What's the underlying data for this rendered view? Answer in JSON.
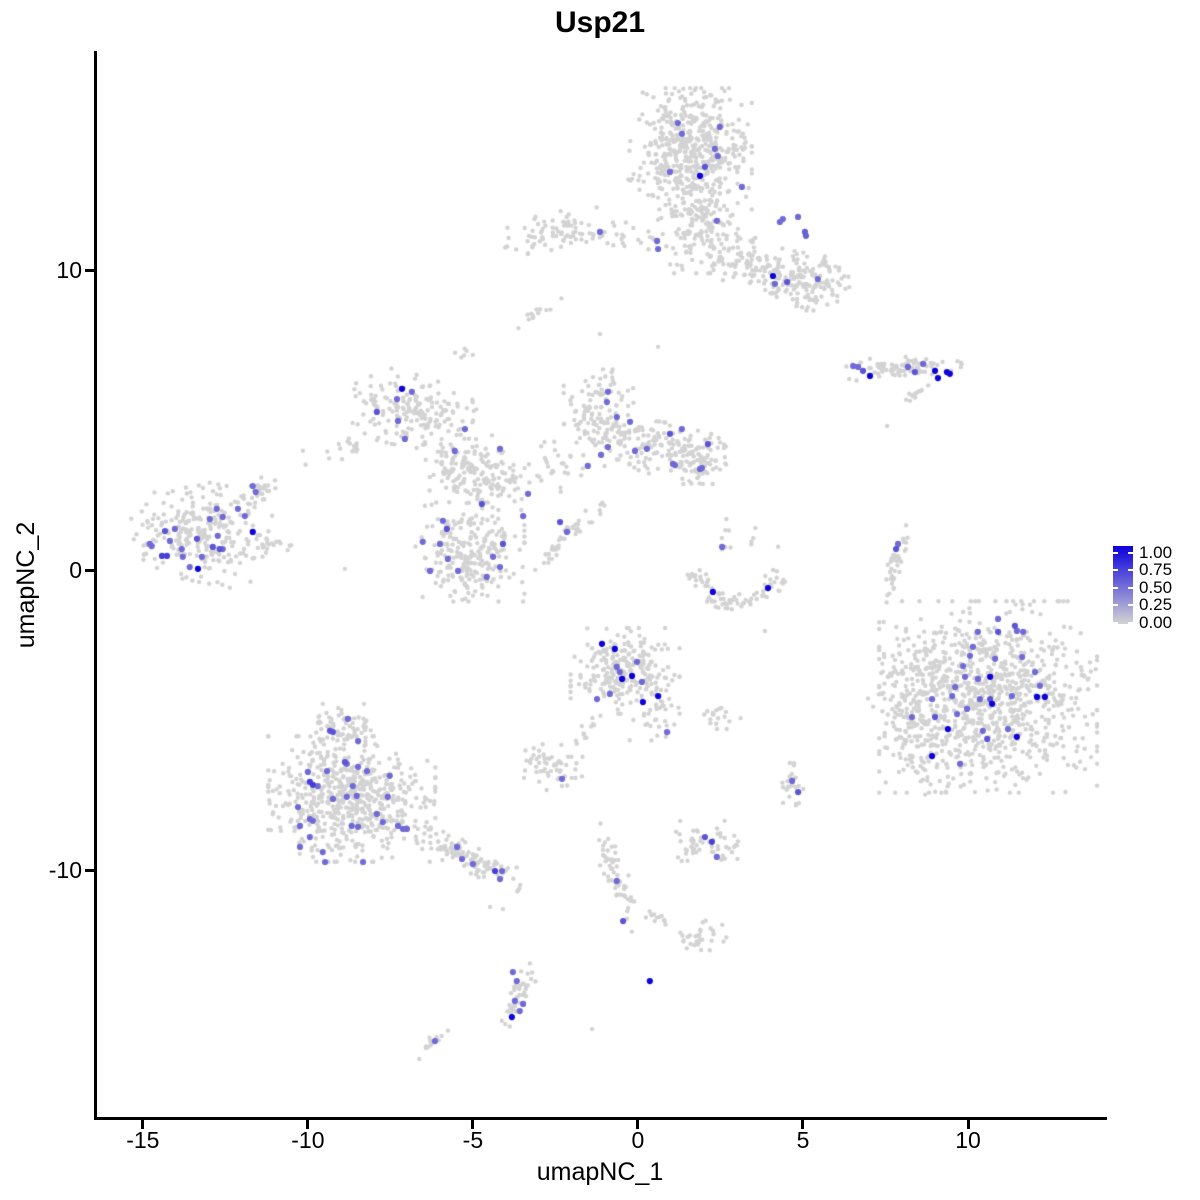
{
  "chart_data": {
    "type": "scatter",
    "title": "Usp21",
    "xlabel": "umapNC_1",
    "ylabel": "umapNC_2",
    "xlim": [
      -16.45,
      14.12
    ],
    "ylim": [
      -18.2,
      17.33
    ],
    "x_ticks": [
      -15,
      -10,
      -5,
      0,
      5,
      10
    ],
    "y_ticks": [
      10,
      0,
      -10
    ],
    "grid": false,
    "point_color_low": "#d3d3d3",
    "point_color_high": "#0b00dc",
    "legend": {
      "position": "right",
      "labels": [
        "1.00",
        "0.75",
        "0.50",
        "0.25",
        "0.00"
      ],
      "color_high": "#0b00dc",
      "color_low": "#d3d3d3"
    },
    "background_clusters": [
      {
        "x": 1.58,
        "y": 14.07,
        "sx": 0.85,
        "sy": 0.92,
        "rot": 0,
        "n": 500
      },
      {
        "x": 1.82,
        "y": 11.57,
        "sx": 0.55,
        "sy": 0.75,
        "rot": 0,
        "n": 150
      },
      {
        "x": 3.7,
        "y": 10.07,
        "sx": 0.9,
        "sy": 0.45,
        "rot": -20,
        "n": 130
      },
      {
        "x": 5.27,
        "y": 9.67,
        "sx": 0.55,
        "sy": 0.45,
        "rot": 0,
        "n": 110
      },
      {
        "x": -2.21,
        "y": 11.3,
        "sx": 0.85,
        "sy": 0.32,
        "rot": 8,
        "n": 85
      },
      {
        "x": 0.06,
        "y": 11.07,
        "sx": 0.5,
        "sy": 0.28,
        "rot": 0,
        "n": 16
      },
      {
        "x": -3.0,
        "y": 8.6,
        "sx": 0.38,
        "sy": 0.1,
        "rot": 37,
        "n": 13
      },
      {
        "x": -5.21,
        "y": 7.3,
        "sx": 0.15,
        "sy": 0.1,
        "rot": 0,
        "n": 6
      },
      {
        "x": 7.94,
        "y": 6.77,
        "sx": 0.85,
        "sy": 0.16,
        "rot": 3,
        "n": 85
      },
      {
        "x": 8.45,
        "y": 5.87,
        "sx": 0.3,
        "sy": 0.08,
        "rot": 40,
        "n": 13
      },
      {
        "x": -6.85,
        "y": 5.33,
        "sx": 0.85,
        "sy": 0.55,
        "rot": -15,
        "n": 175
      },
      {
        "x": -5.33,
        "y": 3.67,
        "sx": 0.5,
        "sy": 0.45,
        "rot": 0,
        "n": 65
      },
      {
        "x": -4.73,
        "y": 3.13,
        "sx": 0.55,
        "sy": 0.5,
        "rot": 0,
        "n": 115
      },
      {
        "x": -8.36,
        "y": 4.3,
        "sx": 0.85,
        "sy": 0.18,
        "rot": 22,
        "n": 26
      },
      {
        "x": -5.09,
        "y": 0.63,
        "sx": 0.75,
        "sy": 0.75,
        "rot": 0,
        "n": 240
      },
      {
        "x": -2.15,
        "y": 1.17,
        "sx": 0.7,
        "sy": 0.12,
        "rot": 48,
        "n": 45
      },
      {
        "x": -1.15,
        "y": 5.07,
        "sx": 0.5,
        "sy": 0.75,
        "rot": 0,
        "n": 135
      },
      {
        "x": 0.42,
        "y": 4.13,
        "sx": 0.65,
        "sy": 0.4,
        "rot": -10,
        "n": 110
      },
      {
        "x": 1.88,
        "y": 3.8,
        "sx": 0.4,
        "sy": 0.45,
        "rot": 0,
        "n": 90
      },
      {
        "x": -2.82,
        "y": 3.4,
        "sx": 0.5,
        "sy": 0.45,
        "rot": 0,
        "n": 28
      },
      {
        "x": -13.33,
        "y": 1.33,
        "sx": 0.95,
        "sy": 0.75,
        "rot": -12,
        "n": 260
      },
      {
        "x": -11.58,
        "y": 2.6,
        "sx": 0.45,
        "sy": 0.15,
        "rot": 42,
        "n": 30
      },
      {
        "x": -11.09,
        "y": 0.87,
        "sx": 0.35,
        "sy": 0.12,
        "rot": 0,
        "n": 22
      },
      {
        "kind": "arc",
        "x": 2.94,
        "y": 0.13,
        "rx": 1.25,
        "ry": 1.2,
        "a0": 185,
        "a1": 355,
        "th": 0.13,
        "n": 80
      },
      {
        "x": 3.09,
        "y": 1.07,
        "sx": 0.8,
        "sy": 0.3,
        "rot": 0,
        "n": 12
      },
      {
        "x": 7.85,
        "y": 0.23,
        "sx": 0.6,
        "sy": 0.12,
        "rot": 74,
        "n": 40
      },
      {
        "x": 10.61,
        "y": -4.2,
        "sx": 1.5,
        "sy": 1.45,
        "rot": 0,
        "n": 950
      },
      {
        "x": 8.18,
        "y": -4.03,
        "sx": 0.55,
        "sy": 1.0,
        "rot": 0,
        "n": 120
      },
      {
        "x": 8.6,
        "y": -6.3,
        "sx": 0.5,
        "sy": 0.6,
        "rot": 0,
        "n": 45
      },
      {
        "x": -0.39,
        "y": -3.33,
        "sx": 0.75,
        "sy": 0.65,
        "rot": 0,
        "n": 230
      },
      {
        "x": 0.52,
        "y": -4.77,
        "sx": 0.35,
        "sy": 0.4,
        "rot": 0,
        "n": 35
      },
      {
        "x": 2.45,
        "y": -4.83,
        "sx": 0.3,
        "sy": 0.2,
        "rot": 0,
        "n": 18
      },
      {
        "x": -2.67,
        "y": -6.53,
        "sx": 0.45,
        "sy": 0.35,
        "rot": 0,
        "n": 55
      },
      {
        "x": -1.61,
        "y": -5.43,
        "sx": 0.55,
        "sy": 0.1,
        "rot": 56,
        "n": 15
      },
      {
        "x": 4.64,
        "y": -7.17,
        "sx": 0.18,
        "sy": 0.35,
        "rot": 0,
        "n": 25
      },
      {
        "x": -9.0,
        "y": -5.2,
        "sx": 0.5,
        "sy": 0.35,
        "rot": 0,
        "n": 65
      },
      {
        "x": -8.67,
        "y": -7.6,
        "sx": 1.15,
        "sy": 0.95,
        "rot": 0,
        "n": 600
      },
      {
        "x": -5.15,
        "y": -9.53,
        "sx": 0.85,
        "sy": 0.22,
        "rot": -29,
        "n": 120
      },
      {
        "x": -0.64,
        "y": -10.2,
        "sx": 0.85,
        "sy": 0.16,
        "rot": -71,
        "n": 55
      },
      {
        "x": 0.55,
        "y": -11.5,
        "sx": 0.4,
        "sy": 0.1,
        "rot": -25,
        "n": 12
      },
      {
        "x": 2.18,
        "y": -9.1,
        "sx": 0.55,
        "sy": 0.35,
        "rot": 0,
        "n": 55
      },
      {
        "x": 1.82,
        "y": -12.2,
        "sx": 0.38,
        "sy": 0.25,
        "rot": 25,
        "n": 30
      },
      {
        "x": -3.58,
        "y": -14.1,
        "sx": 0.55,
        "sy": 0.14,
        "rot": 67,
        "n": 38
      },
      {
        "x": -6.24,
        "y": -15.7,
        "sx": 0.3,
        "sy": 0.1,
        "rot": 40,
        "n": 12
      }
    ],
    "stray_points": [
      [
        -1.15,
        7.9
      ],
      [
        0.61,
        7.47
      ],
      [
        3.85,
        -2.0
      ],
      [
        7.55,
        4.83
      ],
      [
        -4.48,
        -11.2
      ],
      [
        -4.09,
        -11.27
      ],
      [
        -1.39,
        -15.27
      ],
      [
        -8.88,
        0.07
      ]
    ],
    "expressed_points": [
      [
        1.21,
        14.93,
        0.5
      ],
      [
        2.48,
        14.8,
        0.5
      ],
      [
        1.33,
        14.57,
        0.5
      ],
      [
        2.33,
        14.07,
        0.5
      ],
      [
        2.42,
        13.83,
        0.5
      ],
      [
        2.03,
        13.47,
        0.6
      ],
      [
        1.88,
        13.17,
        1
      ],
      [
        0.97,
        13.3,
        0.5
      ],
      [
        3.15,
        12.8,
        0.5
      ],
      [
        2.39,
        11.67,
        0.5
      ],
      [
        0.58,
        11.0,
        0.5
      ],
      [
        -1.15,
        11.3,
        0.5
      ],
      [
        0.61,
        10.73,
        0.5
      ],
      [
        4.3,
        11.63,
        0.5
      ],
      [
        4.39,
        11.73,
        0.5
      ],
      [
        4.85,
        11.8,
        0.5
      ],
      [
        5.06,
        11.3,
        0.55
      ],
      [
        5.09,
        11.17,
        0.55
      ],
      [
        4.09,
        9.83,
        1
      ],
      [
        4.15,
        9.57,
        0.5
      ],
      [
        4.52,
        9.63,
        0.6
      ],
      [
        5.45,
        9.73,
        0.5
      ],
      [
        -7.15,
        6.07,
        1
      ],
      [
        -6.85,
        5.97,
        0.5
      ],
      [
        -7.3,
        5.73,
        0.5
      ],
      [
        -7.91,
        5.3,
        0.6
      ],
      [
        -7.27,
        5.0,
        0.5
      ],
      [
        -7.06,
        4.4,
        0.5
      ],
      [
        -5.24,
        4.73,
        0.5
      ],
      [
        -5.55,
        4.0,
        0.5
      ],
      [
        -4.18,
        4.07,
        0.5
      ],
      [
        -3.33,
        2.57,
        0.5
      ],
      [
        -4.73,
        2.23,
        0.6
      ],
      [
        -3.48,
        1.83,
        0.5
      ],
      [
        -2.36,
        1.63,
        0.6
      ],
      [
        -2.15,
        1.3,
        0.5
      ],
      [
        -5.91,
        1.67,
        0.5
      ],
      [
        -5.79,
        1.4,
        0.6
      ],
      [
        -6.52,
        0.97,
        0.5
      ],
      [
        -6.0,
        0.9,
        0.5
      ],
      [
        -4.09,
        0.9,
        0.6
      ],
      [
        -4.39,
        0.47,
        0.5
      ],
      [
        -5.76,
        0.4,
        0.5
      ],
      [
        -6.3,
        0.0,
        0.5
      ],
      [
        -5.45,
        0.0,
        0.5
      ],
      [
        -4.18,
        0.13,
        0.5
      ],
      [
        -4.58,
        -0.2,
        0.5
      ],
      [
        -0.91,
        5.97,
        0.5
      ],
      [
        -0.94,
        5.63,
        0.5
      ],
      [
        -0.64,
        5.13,
        0.5
      ],
      [
        -0.24,
        4.97,
        0.5
      ],
      [
        -0.91,
        4.13,
        0.5
      ],
      [
        -1.52,
        3.5,
        0.5
      ],
      [
        -0.09,
        4.0,
        0.5
      ],
      [
        0.27,
        4.07,
        0.5
      ],
      [
        0.97,
        4.57,
        0.6
      ],
      [
        1.33,
        4.73,
        0.5
      ],
      [
        1.06,
        3.57,
        0.5
      ],
      [
        2.12,
        4.23,
        0.6
      ],
      [
        1.88,
        3.4,
        0.5
      ],
      [
        -1.12,
        3.87,
        0.5
      ],
      [
        1.12,
        3.53,
        0.5
      ],
      [
        1.94,
        3.43,
        0.5
      ],
      [
        -11.67,
        2.83,
        0.5
      ],
      [
        -11.58,
        2.63,
        0.5
      ],
      [
        -12.76,
        2.07,
        0.5
      ],
      [
        -12.12,
        2.07,
        0.5
      ],
      [
        -12.97,
        1.73,
        0.5
      ],
      [
        -12.58,
        1.8,
        0.5
      ],
      [
        -11.91,
        1.83,
        0.5
      ],
      [
        -14.33,
        1.33,
        0.6
      ],
      [
        -14.03,
        1.4,
        0.5
      ],
      [
        -11.67,
        1.3,
        1
      ],
      [
        -14.73,
        0.83,
        0.5
      ],
      [
        -14.18,
        1.0,
        0.5
      ],
      [
        -13.36,
        1.07,
        0.6
      ],
      [
        -12.73,
        1.17,
        0.5
      ],
      [
        -13.82,
        0.73,
        0.5
      ],
      [
        -12.88,
        0.8,
        0.6
      ],
      [
        -12.67,
        0.73,
        0.6
      ],
      [
        -14.42,
        0.5,
        0.7
      ],
      [
        -14.27,
        0.5,
        0.7
      ],
      [
        -13.79,
        0.47,
        0.5
      ],
      [
        -13.21,
        0.47,
        0.5
      ],
      [
        -12.58,
        0.73,
        0.5
      ],
      [
        -13.58,
        0.13,
        0.5
      ],
      [
        -13.33,
        0.07,
        1
      ],
      [
        -14.79,
        0.9,
        0.5
      ],
      [
        10.91,
        -1.6,
        0.5
      ],
      [
        11.42,
        -1.83,
        0.6
      ],
      [
        11.48,
        -2.0,
        0.5
      ],
      [
        10.3,
        -2.03,
        0.5
      ],
      [
        11.67,
        -2.03,
        0.5
      ],
      [
        10.91,
        -2.03,
        0.6
      ],
      [
        10.15,
        -2.53,
        0.5
      ],
      [
        10.06,
        -2.83,
        0.5
      ],
      [
        10.82,
        -2.93,
        0.5
      ],
      [
        11.64,
        -2.87,
        0.5
      ],
      [
        9.85,
        -3.17,
        0.5
      ],
      [
        12.03,
        -3.37,
        0.5
      ],
      [
        10.67,
        -3.53,
        1
      ],
      [
        10.3,
        -3.6,
        0.5
      ],
      [
        9.91,
        -3.53,
        0.5
      ],
      [
        9.61,
        -3.87,
        0.5
      ],
      [
        12.18,
        -3.83,
        0.5
      ],
      [
        9.52,
        -4.17,
        0.5
      ],
      [
        10.36,
        -4.27,
        0.5
      ],
      [
        10.67,
        -4.27,
        0.6
      ],
      [
        10.73,
        -4.43,
        1
      ],
      [
        11.33,
        -4.17,
        0.5
      ],
      [
        12.09,
        -4.2,
        1
      ],
      [
        12.33,
        -4.2,
        1
      ],
      [
        8.91,
        -4.27,
        0.5
      ],
      [
        9.97,
        -4.6,
        0.5
      ],
      [
        9.67,
        -4.77,
        0.5
      ],
      [
        8.3,
        -4.87,
        0.5
      ],
      [
        9.0,
        -4.87,
        0.6
      ],
      [
        9.39,
        -5.27,
        1
      ],
      [
        10.45,
        -5.33,
        0.5
      ],
      [
        11.21,
        -5.27,
        0.5
      ],
      [
        11.48,
        -5.53,
        1
      ],
      [
        10.58,
        -5.6,
        0.6
      ],
      [
        8.91,
        -6.17,
        1
      ],
      [
        9.76,
        -6.43,
        0.5
      ],
      [
        -8.79,
        -4.93,
        0.5
      ],
      [
        -9.33,
        -5.33,
        0.6
      ],
      [
        -9.24,
        -5.37,
        0.6
      ],
      [
        -8.48,
        -5.67,
        0.5
      ],
      [
        -9.42,
        -6.67,
        0.5
      ],
      [
        -8.88,
        -6.37,
        0.6
      ],
      [
        -8.82,
        -6.43,
        0.5
      ],
      [
        -8.48,
        -6.53,
        0.5
      ],
      [
        -8.21,
        -6.67,
        0.5
      ],
      [
        -7.52,
        -6.83,
        0.5
      ],
      [
        -10.0,
        -6.7,
        0.5
      ],
      [
        -9.94,
        -7.03,
        0.7
      ],
      [
        -9.85,
        -7.13,
        0.7
      ],
      [
        -9.7,
        -7.17,
        0.5
      ],
      [
        -8.64,
        -7.17,
        0.5
      ],
      [
        -9.24,
        -7.6,
        0.5
      ],
      [
        -8.82,
        -7.53,
        0.5
      ],
      [
        -8.52,
        -7.5,
        0.5
      ],
      [
        -7.58,
        -7.53,
        0.5
      ],
      [
        -10.3,
        -7.87,
        0.5
      ],
      [
        -9.94,
        -8.27,
        0.5
      ],
      [
        -9.85,
        -8.33,
        0.5
      ],
      [
        -10.24,
        -8.5,
        0.5
      ],
      [
        -7.91,
        -8.1,
        0.5
      ],
      [
        -7.73,
        -8.37,
        0.5
      ],
      [
        -8.67,
        -8.5,
        0.5
      ],
      [
        -8.48,
        -8.53,
        0.5
      ],
      [
        -7.27,
        -8.5,
        0.5
      ],
      [
        -7.0,
        -8.6,
        0.5
      ],
      [
        -9.94,
        -8.87,
        0.5
      ],
      [
        -10.24,
        -9.2,
        0.5
      ],
      [
        -9.55,
        -9.37,
        0.5
      ],
      [
        -9.48,
        -9.7,
        0.5
      ],
      [
        -8.33,
        -9.7,
        0.5
      ],
      [
        -7.12,
        -8.6,
        0.5
      ],
      [
        -5.48,
        -9.2,
        0.5
      ],
      [
        -5.33,
        -9.6,
        0.5
      ],
      [
        -5.0,
        -9.77,
        0.5
      ],
      [
        -4.33,
        -10.0,
        0.7
      ],
      [
        -4.12,
        -10.0,
        0.5
      ],
      [
        -4.18,
        -10.27,
        0.5
      ],
      [
        -1.09,
        -2.43,
        1
      ],
      [
        -0.7,
        -2.6,
        1
      ],
      [
        -0.03,
        -3.03,
        0.5
      ],
      [
        -0.64,
        -3.2,
        0.5
      ],
      [
        -0.55,
        -3.37,
        0.5
      ],
      [
        -0.18,
        -3.5,
        1
      ],
      [
        -0.48,
        -3.6,
        1
      ],
      [
        0.12,
        -3.7,
        0.5
      ],
      [
        -0.85,
        -4.1,
        0.5
      ],
      [
        0.61,
        -4.17,
        1
      ],
      [
        -1.24,
        -4.27,
        0.5
      ],
      [
        0.15,
        -4.37,
        1
      ],
      [
        0.88,
        -5.37,
        0.5
      ],
      [
        -2.3,
        -6.93,
        0.5
      ],
      [
        4.67,
        -7.0,
        0.5
      ],
      [
        4.85,
        -7.37,
        0.6
      ],
      [
        -0.64,
        -10.33,
        0.5
      ],
      [
        -0.45,
        -11.67,
        0.6
      ],
      [
        2.03,
        -8.87,
        0.6
      ],
      [
        2.24,
        -9.03,
        0.7
      ],
      [
        2.39,
        -9.53,
        0.5
      ],
      [
        -3.79,
        -13.37,
        0.5
      ],
      [
        -3.67,
        -13.67,
        0.5
      ],
      [
        -3.73,
        -14.33,
        0.5
      ],
      [
        -3.48,
        -14.43,
        0.5
      ],
      [
        -3.58,
        -14.67,
        0.5
      ],
      [
        -3.82,
        -14.87,
        1
      ],
      [
        0.36,
        -13.67,
        1
      ],
      [
        -6.15,
        -15.67,
        0.5
      ],
      [
        6.52,
        6.83,
        0.5
      ],
      [
        6.67,
        6.8,
        0.5
      ],
      [
        6.82,
        6.67,
        0.6
      ],
      [
        7.03,
        6.5,
        1
      ],
      [
        8.18,
        6.8,
        0.5
      ],
      [
        8.39,
        6.63,
        0.6
      ],
      [
        8.64,
        6.9,
        0.5
      ],
      [
        9.0,
        6.67,
        1
      ],
      [
        9.09,
        6.43,
        1
      ],
      [
        9.36,
        6.63,
        1
      ],
      [
        9.45,
        6.57,
        1
      ],
      [
        2.55,
        0.8,
        0.5
      ],
      [
        2.27,
        -0.7,
        1
      ],
      [
        3.94,
        -0.57,
        1
      ],
      [
        7.88,
        0.9,
        0.5
      ],
      [
        7.82,
        0.73,
        0.6
      ]
    ]
  }
}
